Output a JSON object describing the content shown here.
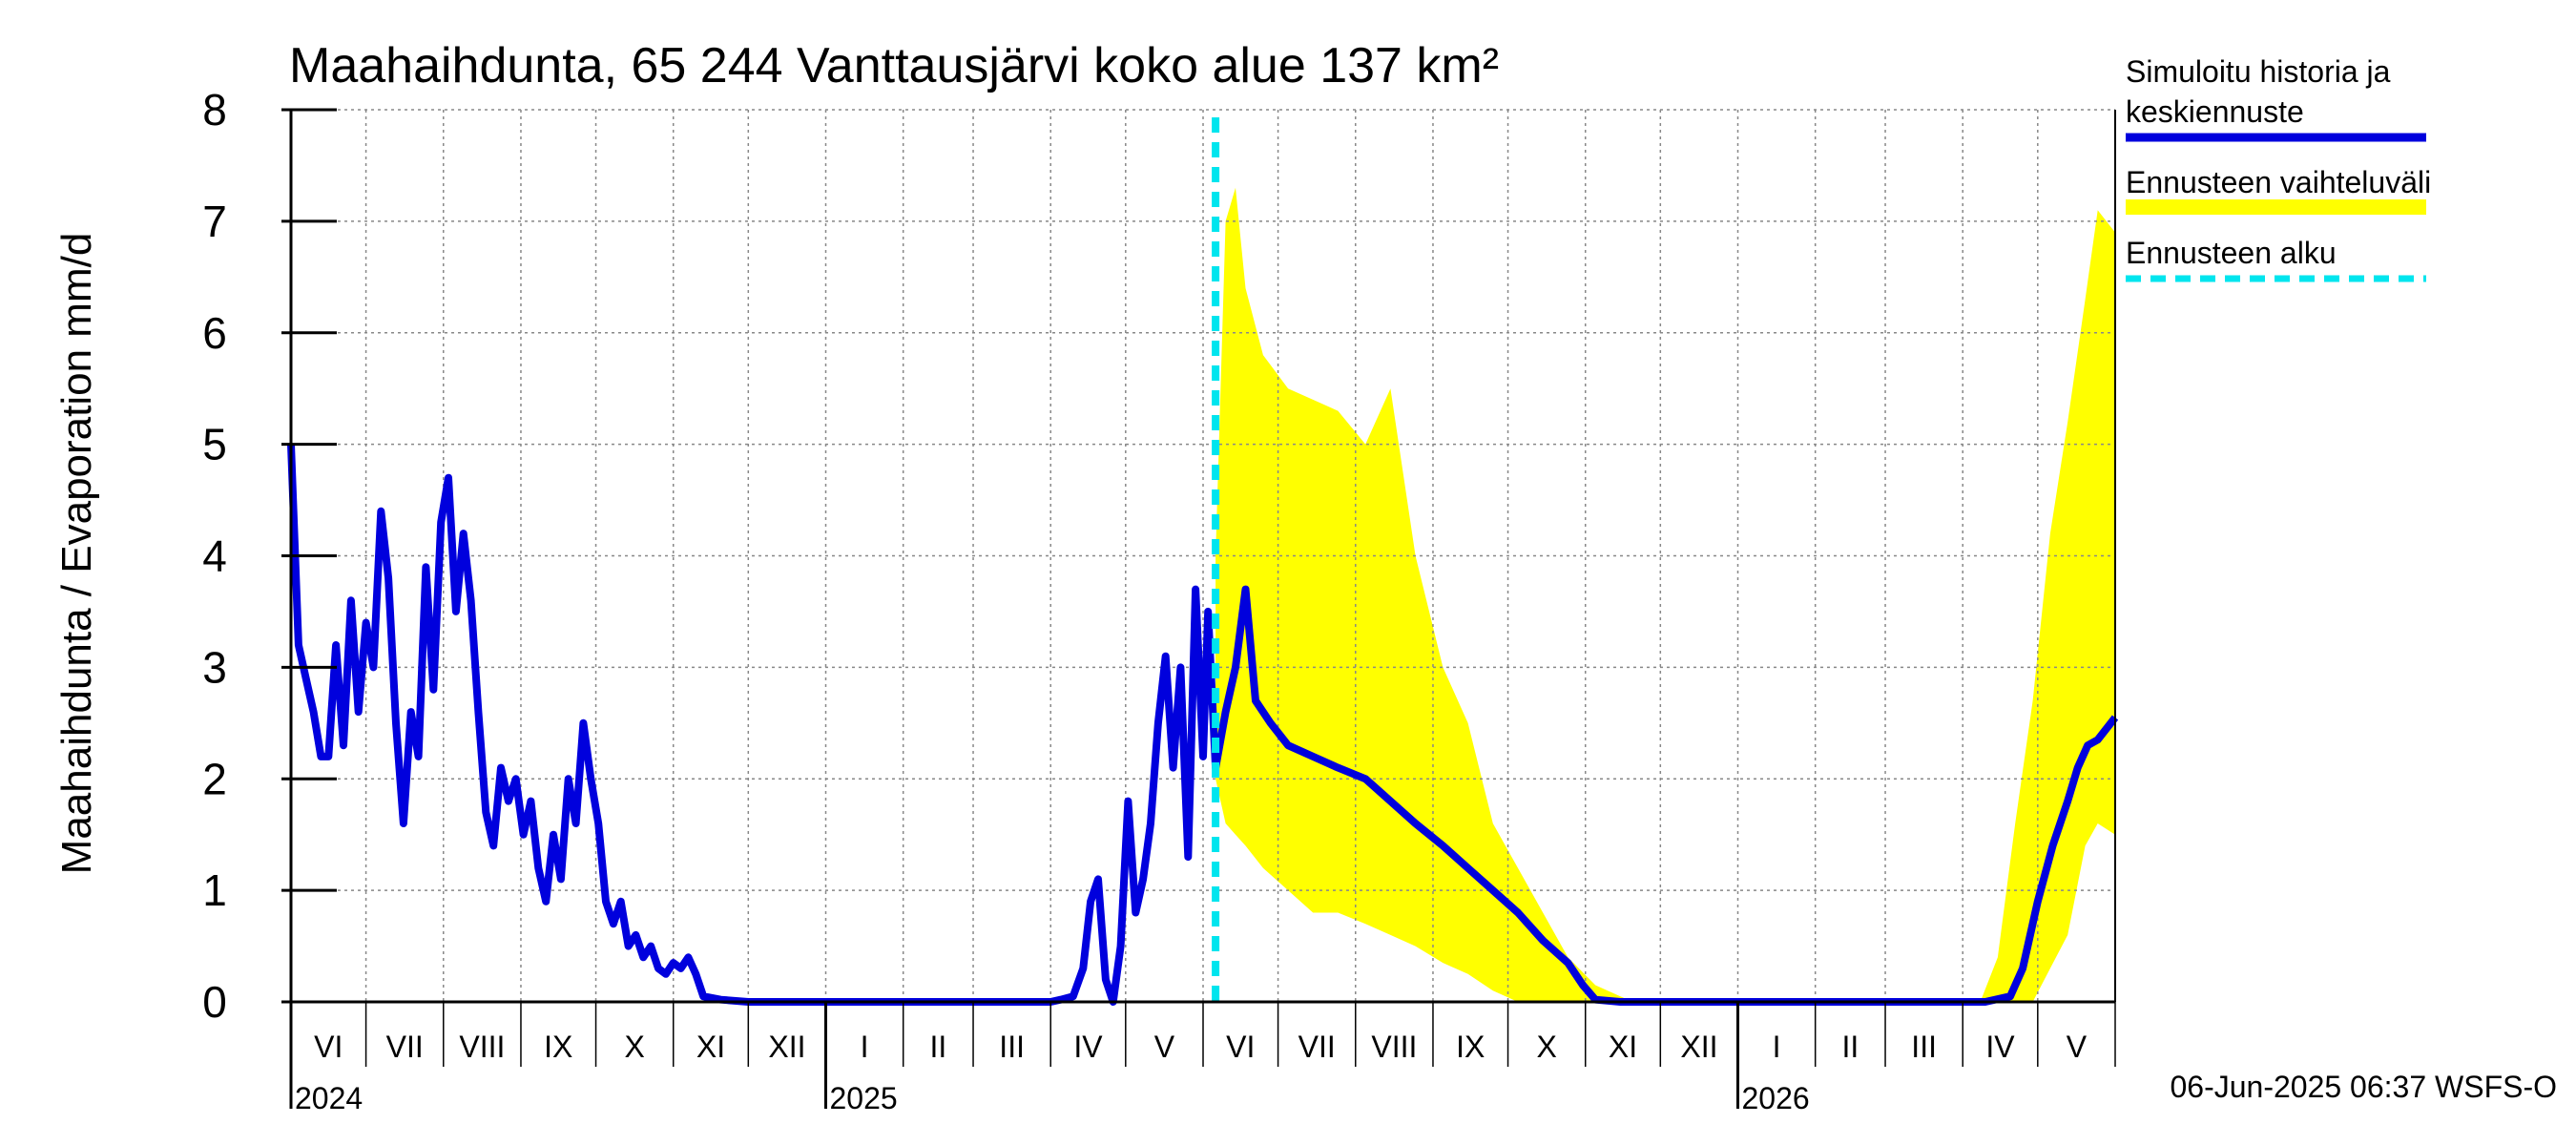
{
  "chart_data": {
    "type": "line",
    "title": "Maahaihdunta, 65 244 Vanttausjärvi koko alue 137 km²",
    "ylabel": "Maahaihdunta / Evaporation   mm/d",
    "ylim": [
      0,
      8
    ],
    "yticks": [
      "0",
      "1",
      "2",
      "3",
      "4",
      "5",
      "6",
      "7",
      "8"
    ],
    "grid": true,
    "months": [
      {
        "label": "VI",
        "year": 2024,
        "m": 6
      },
      {
        "label": "VII",
        "year": 2024,
        "m": 7
      },
      {
        "label": "VIII",
        "year": 2024,
        "m": 8
      },
      {
        "label": "IX",
        "year": 2024,
        "m": 9
      },
      {
        "label": "X",
        "year": 2024,
        "m": 10
      },
      {
        "label": "XI",
        "year": 2024,
        "m": 11
      },
      {
        "label": "XII",
        "year": 2024,
        "m": 12
      },
      {
        "label": "I",
        "year": 2025,
        "m": 1
      },
      {
        "label": "II",
        "year": 2025,
        "m": 2
      },
      {
        "label": "III",
        "year": 2025,
        "m": 3
      },
      {
        "label": "IV",
        "year": 2025,
        "m": 4
      },
      {
        "label": "V",
        "year": 2025,
        "m": 5
      },
      {
        "label": "VI",
        "year": 2025,
        "m": 6
      },
      {
        "label": "VII",
        "year": 2025,
        "m": 7
      },
      {
        "label": "VIII",
        "year": 2025,
        "m": 8
      },
      {
        "label": "IX",
        "year": 2025,
        "m": 9
      },
      {
        "label": "X",
        "year": 2025,
        "m": 10
      },
      {
        "label": "XI",
        "year": 2025,
        "m": 11
      },
      {
        "label": "XII",
        "year": 2025,
        "m": 12
      },
      {
        "label": "I",
        "year": 2026,
        "m": 1
      },
      {
        "label": "II",
        "year": 2026,
        "m": 2
      },
      {
        "label": "III",
        "year": 2026,
        "m": 3
      },
      {
        "label": "IV",
        "year": 2026,
        "m": 4
      },
      {
        "label": "V",
        "year": 2026,
        "m": 5
      }
    ],
    "years": [
      {
        "label": "2024",
        "month_index": 0
      },
      {
        "label": "2025",
        "month_index": 7
      },
      {
        "label": "2026",
        "month_index": 19
      }
    ],
    "x_range": [
      "2024-06-01",
      "2026-06-01"
    ],
    "forecast_start": "2025-06-06",
    "series": [
      {
        "name": "Simuloitu historia ja keskiennuste",
        "color": "#0000dd",
        "points": [
          [
            "2024-06-01",
            5.0
          ],
          [
            "2024-06-04",
            3.2
          ],
          [
            "2024-06-07",
            2.9
          ],
          [
            "2024-06-10",
            2.6
          ],
          [
            "2024-06-13",
            2.2
          ],
          [
            "2024-06-16",
            2.2
          ],
          [
            "2024-06-19",
            3.2
          ],
          [
            "2024-06-22",
            2.3
          ],
          [
            "2024-06-25",
            3.6
          ],
          [
            "2024-06-28",
            2.6
          ],
          [
            "2024-07-01",
            3.4
          ],
          [
            "2024-07-04",
            3.0
          ],
          [
            "2024-07-07",
            4.4
          ],
          [
            "2024-07-10",
            3.8
          ],
          [
            "2024-07-13",
            2.5
          ],
          [
            "2024-07-16",
            1.6
          ],
          [
            "2024-07-19",
            2.6
          ],
          [
            "2024-07-22",
            2.2
          ],
          [
            "2024-07-25",
            3.9
          ],
          [
            "2024-07-28",
            2.8
          ],
          [
            "2024-07-31",
            4.3
          ],
          [
            "2024-08-03",
            4.7
          ],
          [
            "2024-08-06",
            3.5
          ],
          [
            "2024-08-09",
            4.2
          ],
          [
            "2024-08-12",
            3.6
          ],
          [
            "2024-08-15",
            2.6
          ],
          [
            "2024-08-18",
            1.7
          ],
          [
            "2024-08-21",
            1.4
          ],
          [
            "2024-08-24",
            2.1
          ],
          [
            "2024-08-27",
            1.8
          ],
          [
            "2024-08-30",
            2.0
          ],
          [
            "2024-09-02",
            1.5
          ],
          [
            "2024-09-05",
            1.8
          ],
          [
            "2024-09-08",
            1.2
          ],
          [
            "2024-09-11",
            0.9
          ],
          [
            "2024-09-14",
            1.5
          ],
          [
            "2024-09-17",
            1.1
          ],
          [
            "2024-09-20",
            2.0
          ],
          [
            "2024-09-23",
            1.6
          ],
          [
            "2024-09-26",
            2.5
          ],
          [
            "2024-09-29",
            2.0
          ],
          [
            "2024-10-02",
            1.6
          ],
          [
            "2024-10-05",
            0.9
          ],
          [
            "2024-10-08",
            0.7
          ],
          [
            "2024-10-11",
            0.9
          ],
          [
            "2024-10-14",
            0.5
          ],
          [
            "2024-10-17",
            0.6
          ],
          [
            "2024-10-20",
            0.4
          ],
          [
            "2024-10-23",
            0.5
          ],
          [
            "2024-10-26",
            0.3
          ],
          [
            "2024-10-29",
            0.25
          ],
          [
            "2024-11-01",
            0.35
          ],
          [
            "2024-11-04",
            0.3
          ],
          [
            "2024-11-07",
            0.4
          ],
          [
            "2024-11-10",
            0.25
          ],
          [
            "2024-11-13",
            0.05
          ],
          [
            "2024-11-20",
            0.02
          ],
          [
            "2024-12-01",
            0.0
          ],
          [
            "2025-01-01",
            0.0
          ],
          [
            "2025-02-01",
            0.0
          ],
          [
            "2025-03-01",
            0.0
          ],
          [
            "2025-04-01",
            0.0
          ],
          [
            "2025-04-05",
            0.02
          ],
          [
            "2025-04-10",
            0.05
          ],
          [
            "2025-04-14",
            0.3
          ],
          [
            "2025-04-17",
            0.9
          ],
          [
            "2025-04-20",
            1.1
          ],
          [
            "2025-04-23",
            0.2
          ],
          [
            "2025-04-26",
            0.0
          ],
          [
            "2025-04-29",
            0.5
          ],
          [
            "2025-05-02",
            1.8
          ],
          [
            "2025-05-05",
            0.8
          ],
          [
            "2025-05-08",
            1.1
          ],
          [
            "2025-05-11",
            1.6
          ],
          [
            "2025-05-14",
            2.5
          ],
          [
            "2025-05-17",
            3.1
          ],
          [
            "2025-05-20",
            2.1
          ],
          [
            "2025-05-23",
            3.0
          ],
          [
            "2025-05-26",
            1.3
          ],
          [
            "2025-05-29",
            3.7
          ],
          [
            "2025-06-01",
            2.2
          ],
          [
            "2025-06-03",
            3.5
          ],
          [
            "2025-06-06",
            2.1
          ],
          [
            "2025-06-10",
            2.6
          ],
          [
            "2025-06-14",
            3.0
          ],
          [
            "2025-06-18",
            3.7
          ],
          [
            "2025-06-22",
            2.7
          ],
          [
            "2025-06-28",
            2.5
          ],
          [
            "2025-07-05",
            2.3
          ],
          [
            "2025-07-15",
            2.2
          ],
          [
            "2025-07-25",
            2.1
          ],
          [
            "2025-08-05",
            2.0
          ],
          [
            "2025-08-15",
            1.8
          ],
          [
            "2025-08-25",
            1.6
          ],
          [
            "2025-09-05",
            1.4
          ],
          [
            "2025-09-15",
            1.2
          ],
          [
            "2025-09-25",
            1.0
          ],
          [
            "2025-10-05",
            0.8
          ],
          [
            "2025-10-15",
            0.55
          ],
          [
            "2025-10-25",
            0.35
          ],
          [
            "2025-10-31",
            0.15
          ],
          [
            "2025-11-05",
            0.02
          ],
          [
            "2025-11-15",
            0.0
          ],
          [
            "2026-01-01",
            0.0
          ],
          [
            "2026-03-01",
            0.0
          ],
          [
            "2026-04-10",
            0.0
          ],
          [
            "2026-04-20",
            0.05
          ],
          [
            "2026-04-25",
            0.3
          ],
          [
            "2026-05-01",
            0.9
          ],
          [
            "2026-05-07",
            1.4
          ],
          [
            "2026-05-13",
            1.8
          ],
          [
            "2026-05-17",
            2.1
          ],
          [
            "2026-05-21",
            2.3
          ],
          [
            "2026-05-25",
            2.35
          ],
          [
            "2026-06-01",
            2.55
          ]
        ]
      },
      {
        "name": "Ennusteen vaihteluväli",
        "color": "#ffff00",
        "band": [
          [
            "2025-06-06",
            2.0,
            4.0
          ],
          [
            "2025-06-10",
            1.6,
            7.0
          ],
          [
            "2025-06-14",
            1.5,
            7.3
          ],
          [
            "2025-06-18",
            1.4,
            6.4
          ],
          [
            "2025-06-25",
            1.2,
            5.8
          ],
          [
            "2025-07-05",
            1.0,
            5.5
          ],
          [
            "2025-07-15",
            0.8,
            5.4
          ],
          [
            "2025-07-25",
            0.8,
            5.3
          ],
          [
            "2025-08-05",
            0.7,
            5.0
          ],
          [
            "2025-08-15",
            0.6,
            5.5
          ],
          [
            "2025-08-25",
            0.5,
            4.0
          ],
          [
            "2025-09-05",
            0.35,
            3.0
          ],
          [
            "2025-09-15",
            0.25,
            2.5
          ],
          [
            "2025-09-25",
            0.1,
            1.6
          ],
          [
            "2025-10-05",
            0.0,
            1.2
          ],
          [
            "2025-10-15",
            0.0,
            0.8
          ],
          [
            "2025-10-25",
            0.0,
            0.4
          ],
          [
            "2025-11-05",
            0.0,
            0.15
          ],
          [
            "2025-11-15",
            0.0,
            0.05
          ],
          [
            "2025-11-20",
            0.0,
            0.0
          ],
          [
            "2026-04-08",
            0.0,
            0.0
          ],
          [
            "2026-04-15",
            0.0,
            0.4
          ],
          [
            "2026-04-22",
            0.0,
            1.6
          ],
          [
            "2026-04-29",
            0.0,
            2.7
          ],
          [
            "2026-05-06",
            0.3,
            4.2
          ],
          [
            "2026-05-13",
            0.6,
            5.2
          ],
          [
            "2026-05-20",
            1.4,
            6.3
          ],
          [
            "2026-05-25",
            1.6,
            7.1
          ],
          [
            "2026-06-01",
            1.5,
            6.9
          ]
        ]
      },
      {
        "name": "Ennusteen alku",
        "color": "#00e5ee"
      }
    ],
    "legend_position": "right"
  },
  "footer": "06-Jun-2025 06:37 WSFS-O"
}
